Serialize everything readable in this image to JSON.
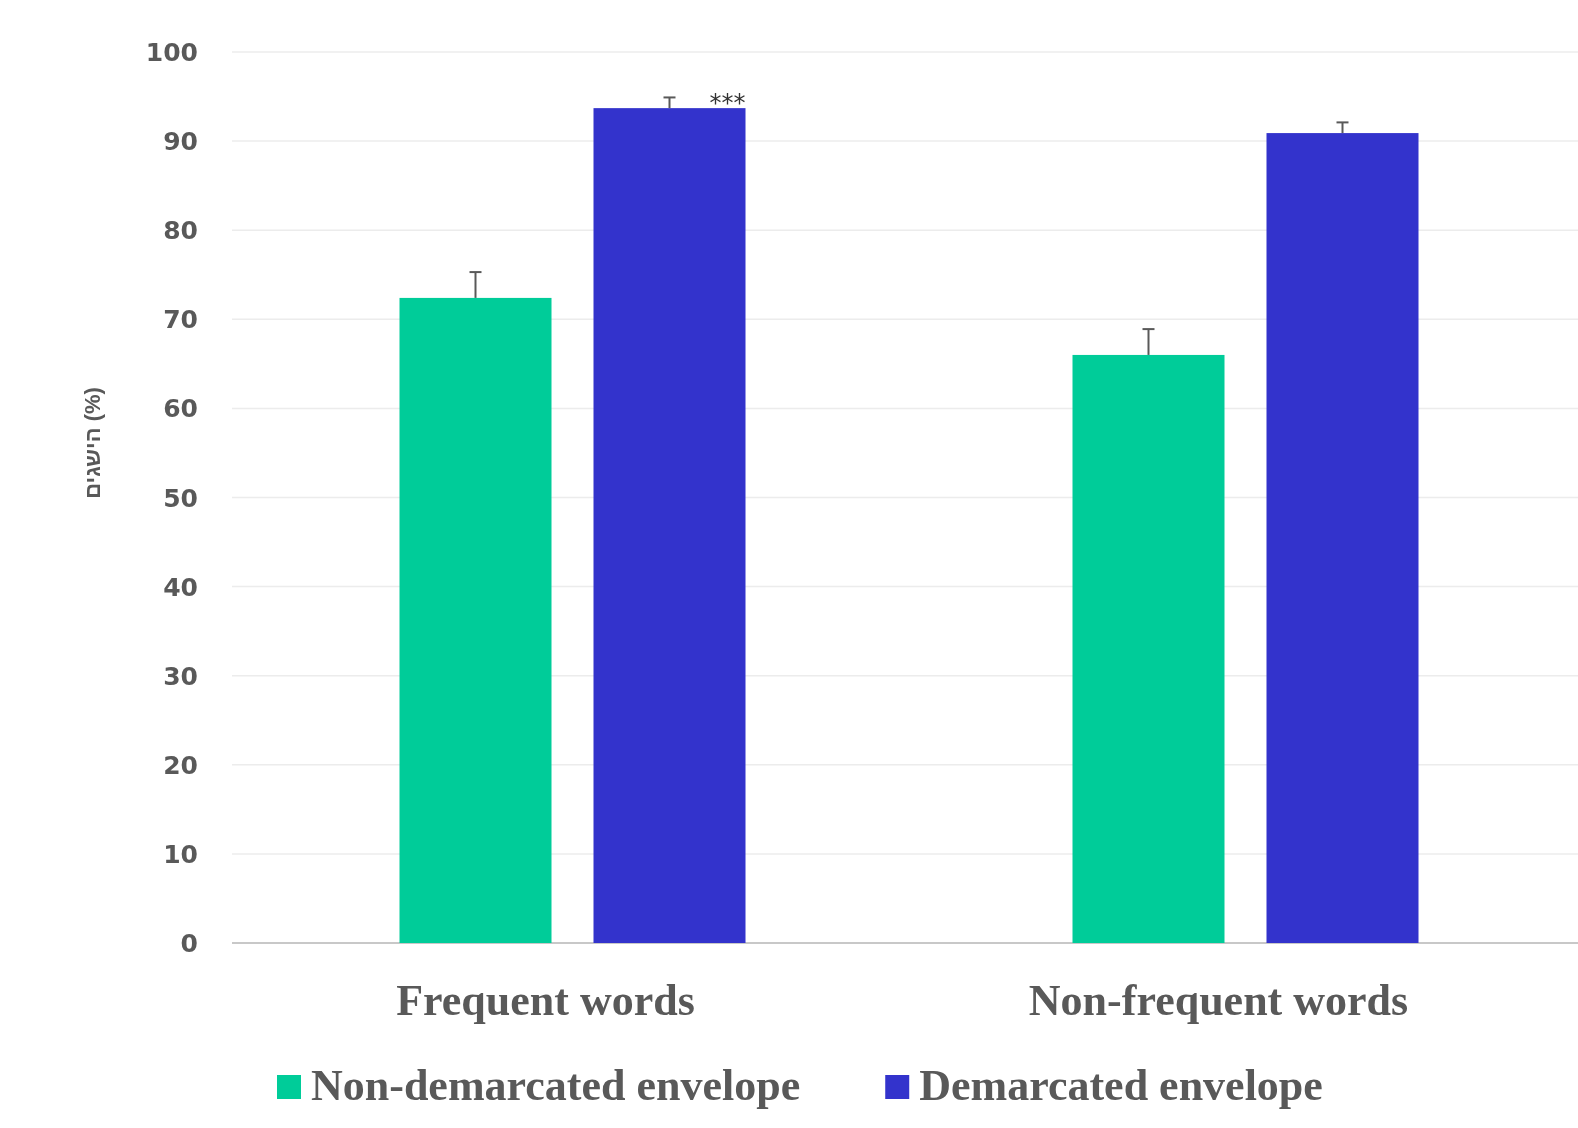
{
  "chart_data": {
    "type": "bar",
    "ylabel": "הישגים (%)",
    "categories": [
      "Frequent words",
      "Non-frequent words"
    ],
    "series": [
      {
        "name": "Non-demarcated envelope",
        "color": "#00cc99",
        "values": [
          72.4,
          66.0
        ],
        "errors": [
          2.9,
          2.9
        ]
      },
      {
        "name": "Demarcated envelope",
        "color": "#3333cc",
        "values": [
          93.7,
          90.9
        ],
        "errors": [
          1.2,
          1.2
        ]
      }
    ],
    "ylim": [
      0,
      100
    ],
    "yticks": [
      0,
      10,
      20,
      30,
      40,
      50,
      60,
      70,
      80,
      90,
      100
    ],
    "grid": "y",
    "legend": "bottom",
    "annotations": [
      "***"
    ]
  }
}
